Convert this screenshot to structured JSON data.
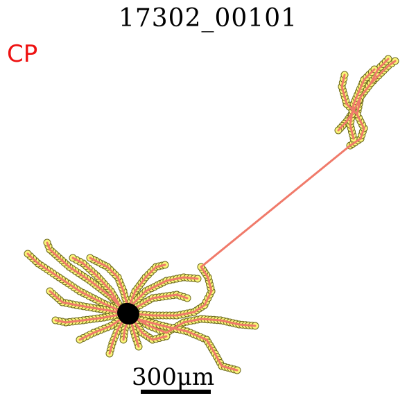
{
  "title": "17302_00101",
  "label": "CP",
  "scale_bar": {
    "text": "300μm",
    "value": 300,
    "unit": "μm"
  },
  "colors": {
    "neurite": "#f07a6a",
    "node_fill": "#fbf57a",
    "node_stroke": "#6d6a1e",
    "soma": "#000000",
    "label": "#ee1111"
  }
}
